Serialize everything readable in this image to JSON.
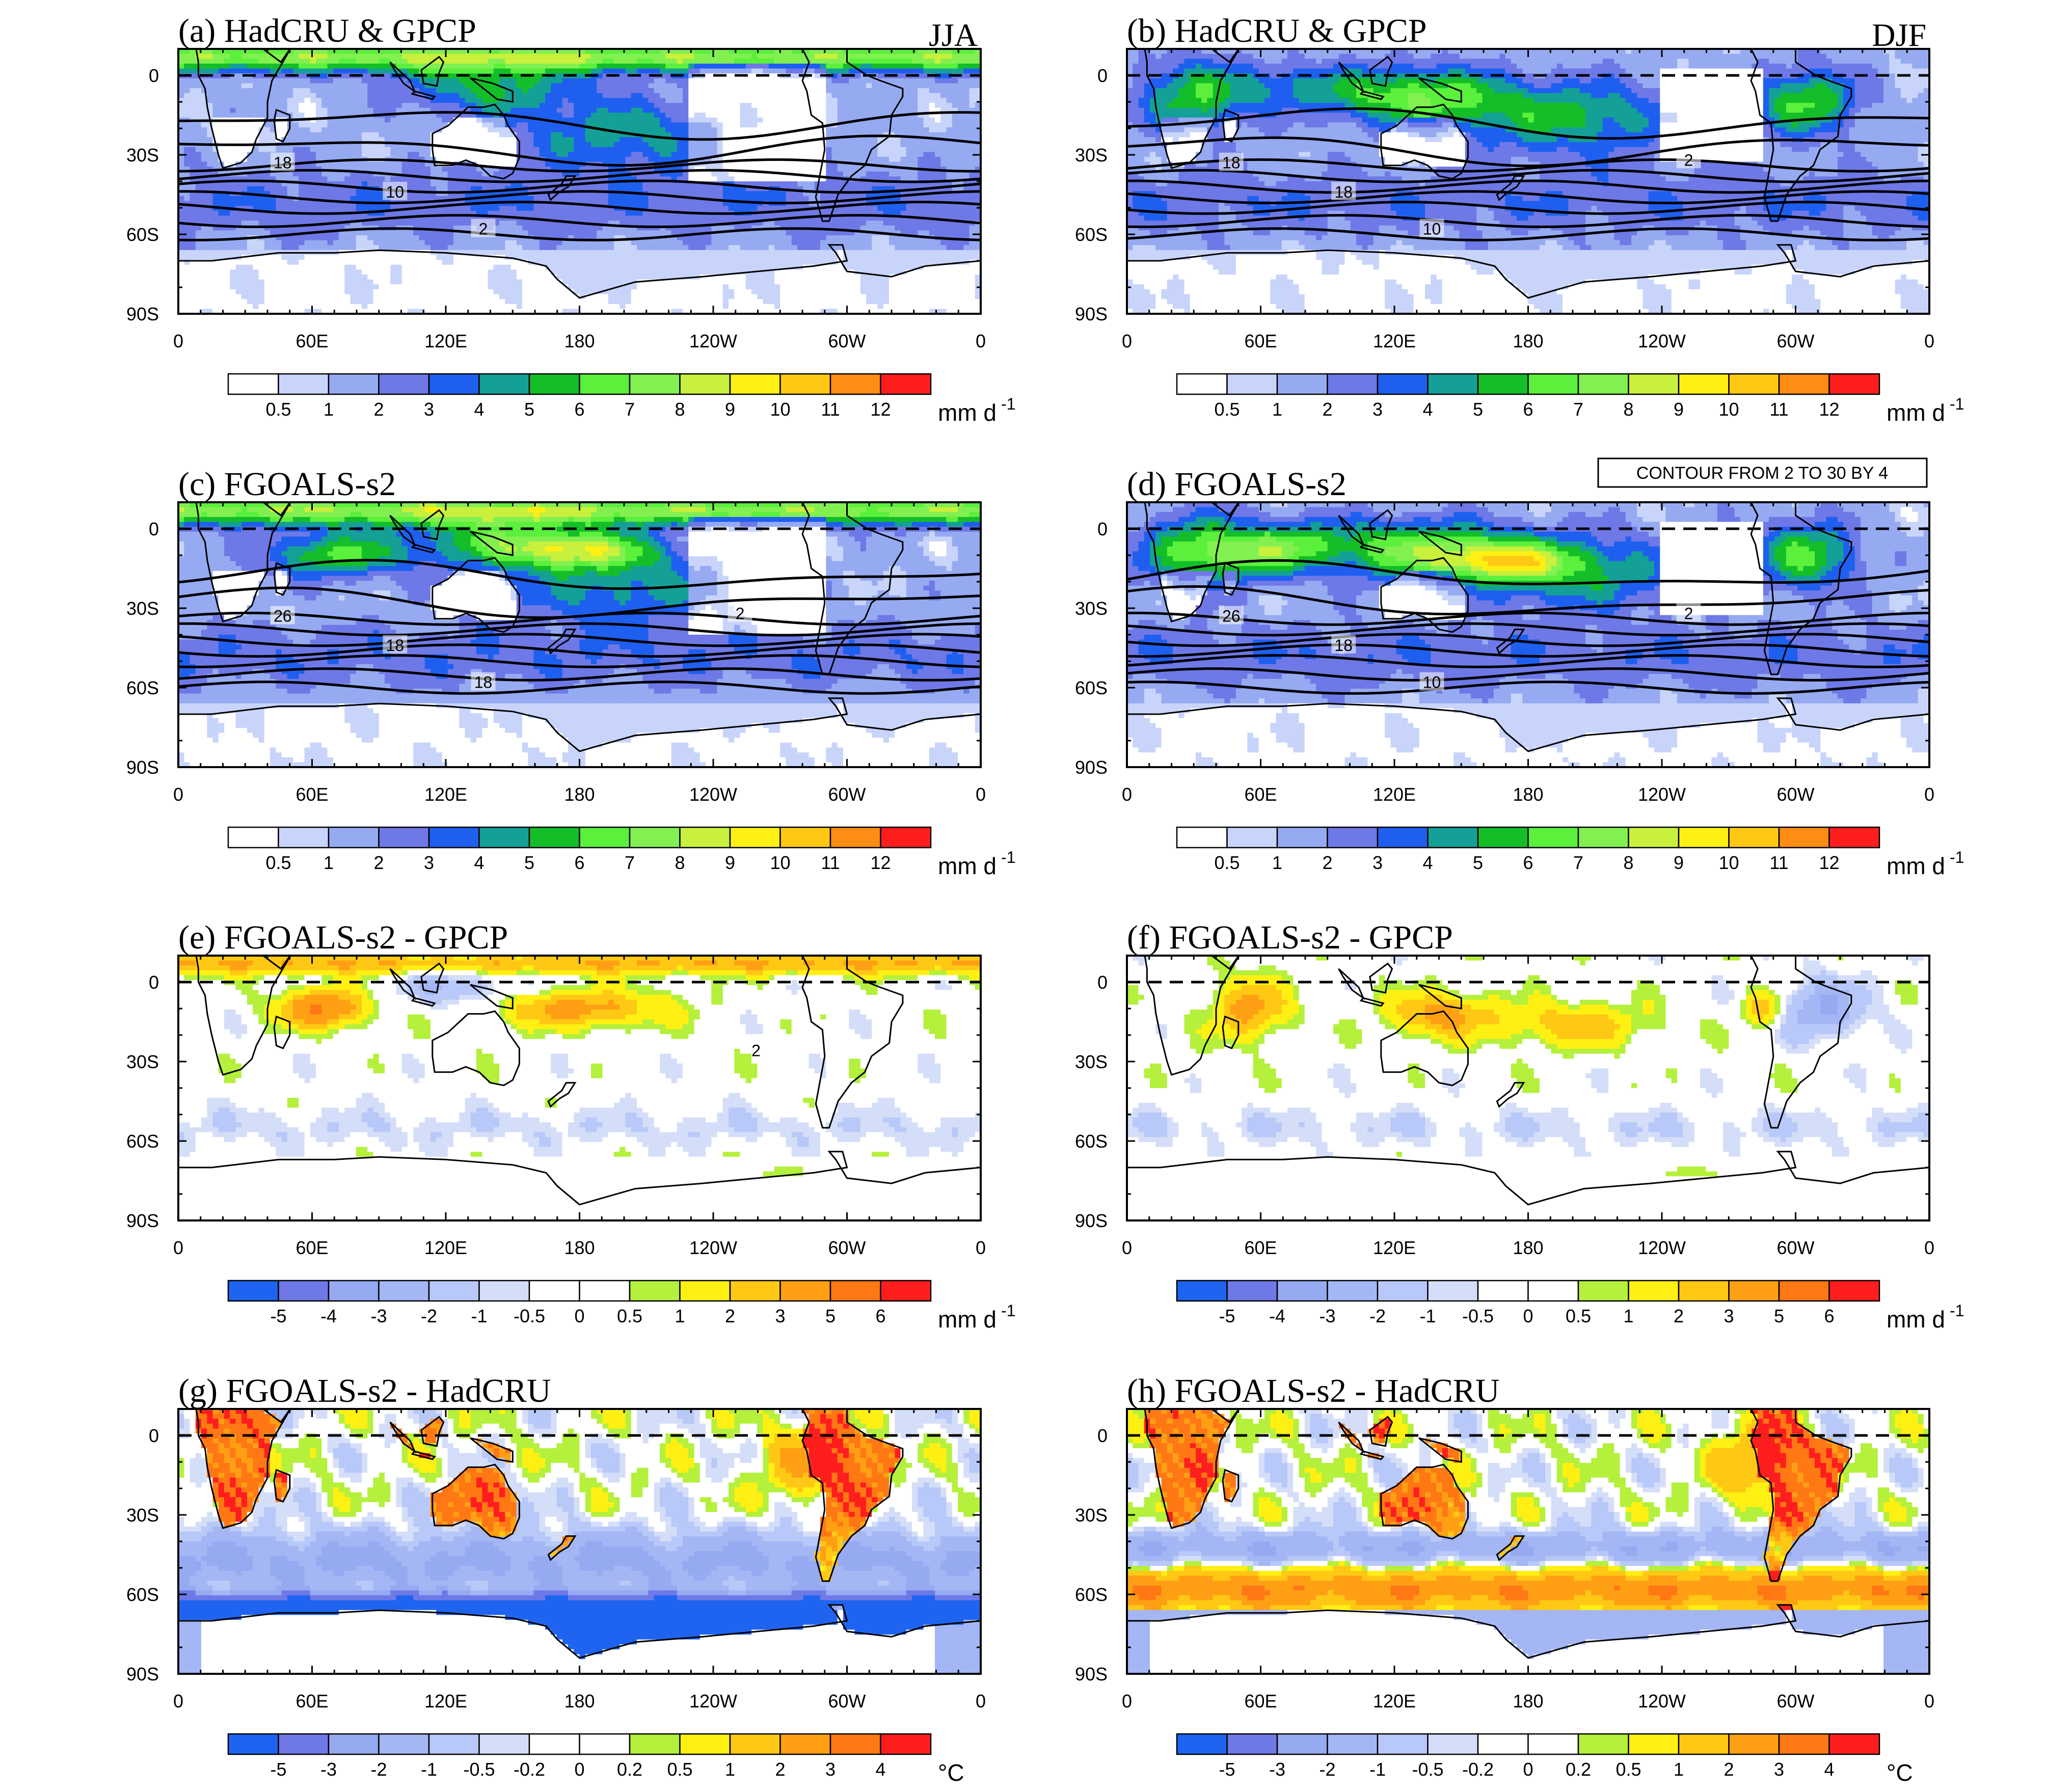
{
  "chart_data": [
    {
      "type": "heatmap",
      "id": "a",
      "title": "(a) HadCRU & GPCP",
      "season": "JJA",
      "field": "precip",
      "cbar": "precip",
      "contour_labels": [
        "18",
        "10",
        "2"
      ],
      "xticks": [
        "0",
        "60E",
        "120E",
        "180",
        "120W",
        "60W",
        "0"
      ],
      "yticks": [
        "0",
        "30S",
        "60S",
        "90S"
      ],
      "lat_range": [
        -90,
        10
      ],
      "lon_range": [
        0,
        360
      ]
    },
    {
      "type": "heatmap",
      "id": "b",
      "title": "(b) HadCRU & GPCP",
      "season": "DJF",
      "field": "precip",
      "cbar": "precip",
      "contour_labels": [
        "18",
        "18",
        "10",
        "2"
      ],
      "xticks": [
        "0",
        "60E",
        "120E",
        "180",
        "120W",
        "60W",
        "0"
      ],
      "yticks": [
        "0",
        "30S",
        "60S",
        "90S"
      ],
      "lat_range": [
        -90,
        10
      ],
      "lon_range": [
        0,
        360
      ]
    },
    {
      "type": "heatmap",
      "id": "c",
      "title": "(c) FGOALS-s2",
      "season": "",
      "field": "precip",
      "cbar": "precip",
      "contour_labels": [
        "26",
        "18",
        "18",
        "2"
      ],
      "xticks": [
        "0",
        "60E",
        "120E",
        "180",
        "120W",
        "60W",
        "0"
      ],
      "yticks": [
        "0",
        "30S",
        "60S",
        "90S"
      ],
      "lat_range": [
        -90,
        10
      ],
      "lon_range": [
        0,
        360
      ]
    },
    {
      "type": "heatmap",
      "id": "d",
      "title": "(d) FGOALS-s2",
      "season": "",
      "info": "CONTOUR FROM 2 TO 30 BY 4",
      "field": "precip",
      "cbar": "precip",
      "contour_labels": [
        "26",
        "18",
        "10",
        "2"
      ],
      "xticks": [
        "0",
        "60E",
        "120E",
        "180",
        "120W",
        "60W",
        "0"
      ],
      "yticks": [
        "0",
        "30S",
        "60S",
        "90S"
      ],
      "lat_range": [
        -90,
        10
      ],
      "lon_range": [
        0,
        360
      ]
    },
    {
      "type": "heatmap",
      "id": "e",
      "title": "(e) FGOALS-s2 - GPCP",
      "season": "",
      "field": "pdiff",
      "cbar": "pdiff",
      "contour_labels": [
        "2"
      ],
      "xticks": [
        "0",
        "60E",
        "120E",
        "180",
        "120W",
        "60W",
        "0"
      ],
      "yticks": [
        "0",
        "30S",
        "60S",
        "90S"
      ],
      "lat_range": [
        -90,
        10
      ],
      "lon_range": [
        0,
        360
      ]
    },
    {
      "type": "heatmap",
      "id": "f",
      "title": "(f) FGOALS-s2 - GPCP",
      "season": "",
      "field": "pdiff",
      "cbar": "pdiff",
      "contour_labels": [],
      "xticks": [
        "0",
        "60E",
        "120E",
        "180",
        "120W",
        "60W",
        "0"
      ],
      "yticks": [
        "0",
        "30S",
        "60S",
        "90S"
      ],
      "lat_range": [
        -90,
        10
      ],
      "lon_range": [
        0,
        360
      ]
    },
    {
      "type": "heatmap",
      "id": "g",
      "title": "(g) FGOALS-s2 - HadCRU",
      "season": "",
      "field": "tdiff",
      "cbar": "tdiff",
      "contour_labels": [],
      "xticks": [
        "0",
        "60E",
        "120E",
        "180",
        "120W",
        "60W",
        "0"
      ],
      "yticks": [
        "0",
        "30S",
        "60S",
        "90S"
      ],
      "lat_range": [
        -90,
        10
      ],
      "lon_range": [
        0,
        360
      ]
    },
    {
      "type": "heatmap",
      "id": "h",
      "title": "(h) FGOALS-s2 - HadCRU",
      "season": "",
      "field": "tdiff",
      "cbar": "tdiff",
      "contour_labels": [],
      "xticks": [
        "0",
        "60E",
        "120E",
        "180",
        "120W",
        "60W",
        "0"
      ],
      "yticks": [
        "0",
        "30S",
        "60S",
        "90S"
      ],
      "lat_range": [
        -90,
        10
      ],
      "lon_range": [
        0,
        360
      ]
    }
  ],
  "colorbars": {
    "precip": {
      "labels": [
        "0.5",
        "1",
        "2",
        "3",
        "4",
        "5",
        "6",
        "7",
        "8",
        "9",
        "10",
        "11",
        "12"
      ],
      "colors": [
        "#ffffff",
        "#c8d4fa",
        "#96aaf2",
        "#6e78e6",
        "#1e5ff0",
        "#14a096",
        "#14be28",
        "#5af03c",
        "#82f050",
        "#c8f03c",
        "#fff014",
        "#ffc814",
        "#ff8c14",
        "#ff1e1e"
      ],
      "unit": "mm d",
      "unit_sup": "-1"
    },
    "pdiff": {
      "labels": [
        "-5",
        "-4",
        "-3",
        "-2",
        "-1",
        "-0.5",
        "0",
        "0.5",
        "1",
        "2",
        "3",
        "5",
        "6"
      ],
      "colors": [
        "#1e64f0",
        "#6e78e6",
        "#96aaf2",
        "#a4b6f4",
        "#b8c8f8",
        "#d4def8",
        "#ffffff",
        "#ffffff",
        "#b4f03c",
        "#fff014",
        "#ffc814",
        "#ffa014",
        "#ff7814",
        "#ff1e1e"
      ],
      "unit": "mm d",
      "unit_sup": "-1"
    },
    "tdiff": {
      "labels": [
        "-5",
        "-3",
        "-2",
        "-1",
        "-0.5",
        "-0.2",
        "0",
        "0.2",
        "0.5",
        "1",
        "2",
        "3",
        "4"
      ],
      "colors": [
        "#1e64f0",
        "#6e78e6",
        "#96aaf2",
        "#a4b6f4",
        "#b8c8f8",
        "#d4def8",
        "#ffffff",
        "#ffffff",
        "#b4f03c",
        "#fff014",
        "#ffc814",
        "#ffa014",
        "#ff7814",
        "#ff1e1e"
      ],
      "unit": "°C",
      "unit_sup": ""
    }
  }
}
